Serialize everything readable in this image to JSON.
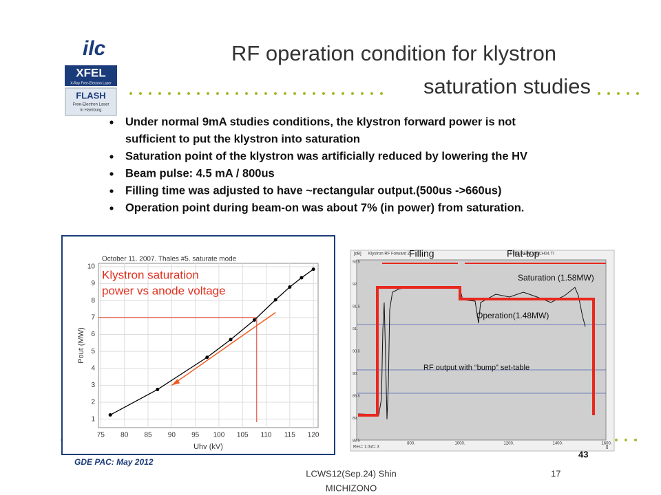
{
  "header": {
    "title_lines": [
      "RF operation condition for klystron",
      "saturation studies"
    ]
  },
  "logos": {
    "ilc": "ilc",
    "xfel": "XFEL",
    "xfel_sub": "X-Ray Free-Electron Laser",
    "flash": "FLASH",
    "flash_sub": [
      "Free-Electron Laser",
      "in Hamburg"
    ]
  },
  "bullets": [
    [
      "Under normal 9mA studies conditions, the klystron forward power is not",
      "sufficient to put the klystron into saturation"
    ],
    [
      "Saturation point of the klystron was artificially reduced by lowering the HV"
    ],
    [
      "Beam pulse: 4.5 mA / 800us"
    ],
    [
      "Filling time was adjusted to have ~rectangular output.(500us ->660us)"
    ],
    [
      "Operation point during beam-on was about 7% (in power) from saturation."
    ]
  ],
  "chart_data": {
    "type": "line",
    "subtitle": "October 11. 2007. Thales #5. saturate mode",
    "annotation": [
      "Klystron saturation",
      "power vs anode voltage"
    ],
    "x_label": "Uhv (kV)",
    "y_label": "Pout (MW)",
    "x": [
      77,
      87,
      97.5,
      102.5,
      107.5,
      112,
      115,
      117.5,
      120
    ],
    "series": [
      {
        "name": "Pout",
        "color": "#000000",
        "values": [
          1.25,
          2.75,
          4.65,
          5.7,
          6.85,
          8.05,
          8.8,
          9.35,
          9.85
        ]
      }
    ],
    "guide": {
      "x": 108,
      "y": 7,
      "color": "#e0301e"
    },
    "tangent": {
      "x": [
        90,
        112
      ],
      "y": [
        3,
        7.3
      ],
      "color": "#f05a1e"
    },
    "xlim": [
      74.5,
      121
    ],
    "ylim": [
      0.5,
      10.2
    ],
    "xticks": [
      75,
      80,
      85,
      90,
      95,
      100,
      105,
      110,
      115,
      120
    ],
    "yticks": [
      1,
      2,
      3,
      4,
      5,
      6,
      7,
      8,
      9,
      10
    ],
    "grid": true
  },
  "scope": {
    "title": "Klystron RF Forward 2",
    "header_right": "TTF2.RF/KLY.4/CH04.TI",
    "unit": "[dB]",
    "x_unit": "[]",
    "filling": "Filling",
    "flat_top": "Flat-top",
    "saturation": "Saturation (1.58MW)",
    "operation": "Operation(1.48MW)",
    "caption": "RF output with “bump” set-table",
    "y_labels": [
      "92.5",
      "92.",
      "91.5",
      "91.",
      "90.5",
      "90.",
      "89.5",
      "89.",
      "88.5"
    ],
    "x_labels": [
      "800.",
      "1000.",
      "1200.",
      "1400.",
      "1600."
    ],
    "x_note": "Res= 1.0uf= 3"
  },
  "footer": {
    "left": "GDE PAC: May 2012",
    "page_inner": "43",
    "center": [
      "LCWS12(Sep.24) Shin",
      "MICHIZONO"
    ],
    "page": "17"
  }
}
